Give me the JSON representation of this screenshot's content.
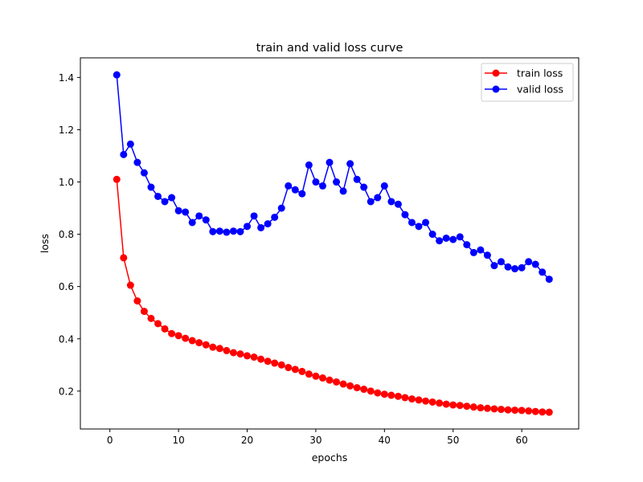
{
  "chart_data": {
    "type": "line",
    "title": "train and valid loss curve",
    "xlabel": "epochs",
    "ylabel": "loss",
    "xlim": [
      -4.3,
      68.3
    ],
    "ylim": [
      0.055,
      1.475
    ],
    "xticks": [
      0,
      10,
      20,
      30,
      40,
      50,
      60
    ],
    "yticks": [
      0.2,
      0.4,
      0.6,
      0.8,
      1.0,
      1.2,
      1.4
    ],
    "xtick_labels": [
      "0",
      "10",
      "20",
      "30",
      "40",
      "50",
      "60"
    ],
    "ytick_labels": [
      "0.2",
      "0.4",
      "0.6",
      "0.8",
      "1.0",
      "1.2",
      "1.4"
    ],
    "grid": false,
    "legend_position": "top-right",
    "x": [
      1,
      2,
      3,
      4,
      5,
      6,
      7,
      8,
      9,
      10,
      11,
      12,
      13,
      14,
      15,
      16,
      17,
      18,
      19,
      20,
      21,
      22,
      23,
      24,
      25,
      26,
      27,
      28,
      29,
      30,
      31,
      32,
      33,
      34,
      35,
      36,
      37,
      38,
      39,
      40,
      41,
      42,
      43,
      44,
      45,
      46,
      47,
      48,
      49,
      50,
      51,
      52,
      53,
      54,
      55,
      56,
      57,
      58,
      59,
      60,
      61,
      62,
      63,
      64
    ],
    "series": [
      {
        "name": "train loss",
        "color": "#ff0000",
        "values": [
          1.01,
          0.71,
          0.605,
          0.545,
          0.505,
          0.478,
          0.458,
          0.438,
          0.42,
          0.412,
          0.402,
          0.393,
          0.385,
          0.377,
          0.368,
          0.363,
          0.355,
          0.347,
          0.342,
          0.335,
          0.33,
          0.322,
          0.314,
          0.307,
          0.3,
          0.29,
          0.283,
          0.275,
          0.265,
          0.257,
          0.25,
          0.242,
          0.235,
          0.227,
          0.22,
          0.213,
          0.207,
          0.2,
          0.193,
          0.188,
          0.184,
          0.18,
          0.175,
          0.17,
          0.166,
          0.162,
          0.158,
          0.154,
          0.15,
          0.147,
          0.145,
          0.142,
          0.139,
          0.136,
          0.134,
          0.132,
          0.13,
          0.128,
          0.127,
          0.126,
          0.124,
          0.122,
          0.12,
          0.119
        ]
      },
      {
        "name": "valid loss",
        "color": "#0000ff",
        "values": [
          1.41,
          1.105,
          1.145,
          1.075,
          1.035,
          0.98,
          0.945,
          0.925,
          0.94,
          0.89,
          0.885,
          0.845,
          0.87,
          0.855,
          0.81,
          0.812,
          0.808,
          0.812,
          0.81,
          0.83,
          0.87,
          0.825,
          0.84,
          0.865,
          0.9,
          0.985,
          0.97,
          0.955,
          1.065,
          1.0,
          0.985,
          1.075,
          1.0,
          0.965,
          1.07,
          1.01,
          0.98,
          0.925,
          0.94,
          0.985,
          0.925,
          0.915,
          0.875,
          0.845,
          0.83,
          0.845,
          0.8,
          0.775,
          0.785,
          0.78,
          0.79,
          0.76,
          0.73,
          0.74,
          0.72,
          0.68,
          0.695,
          0.675,
          0.668,
          0.672,
          0.695,
          0.685,
          0.655,
          0.628
        ]
      }
    ]
  }
}
